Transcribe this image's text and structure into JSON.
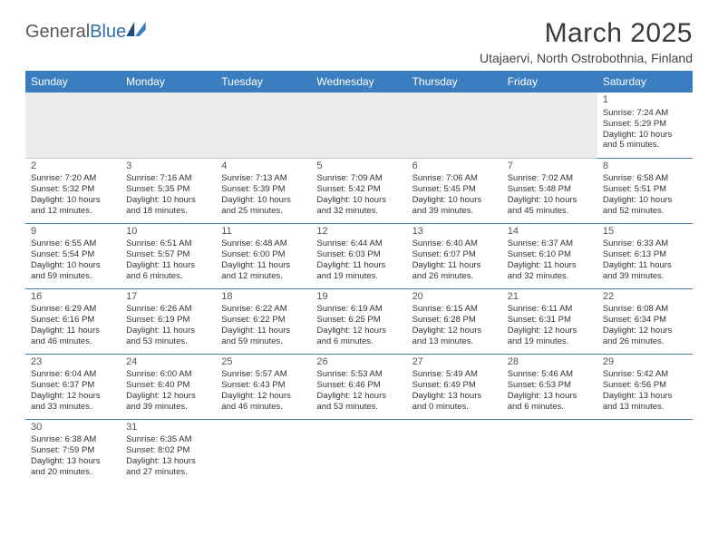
{
  "logo": {
    "text1": "General",
    "text2": "Blue"
  },
  "title": "March 2025",
  "subtitle": "Utajaervi, North Ostrobothnia, Finland",
  "colors": {
    "header_bg": "#3a7ebf",
    "header_text": "#ffffff",
    "empty_bg": "#ececec",
    "row_divider": "#3a7ebf",
    "text": "#333333",
    "logo_gray": "#5a5a5a",
    "logo_blue": "#2f6fa8"
  },
  "fonts": {
    "title_size": 30,
    "subtitle_size": 14,
    "header_size": 12,
    "cell_size": 9.5,
    "daynum_size": 11
  },
  "weekdays": [
    "Sunday",
    "Monday",
    "Tuesday",
    "Wednesday",
    "Thursday",
    "Friday",
    "Saturday"
  ],
  "weeks": [
    [
      null,
      null,
      null,
      null,
      null,
      null,
      {
        "n": "1",
        "sr": "Sunrise: 7:24 AM",
        "ss": "Sunset: 5:29 PM",
        "d1": "Daylight: 10 hours",
        "d2": "and 5 minutes."
      }
    ],
    [
      {
        "n": "2",
        "sr": "Sunrise: 7:20 AM",
        "ss": "Sunset: 5:32 PM",
        "d1": "Daylight: 10 hours",
        "d2": "and 12 minutes."
      },
      {
        "n": "3",
        "sr": "Sunrise: 7:16 AM",
        "ss": "Sunset: 5:35 PM",
        "d1": "Daylight: 10 hours",
        "d2": "and 18 minutes."
      },
      {
        "n": "4",
        "sr": "Sunrise: 7:13 AM",
        "ss": "Sunset: 5:39 PM",
        "d1": "Daylight: 10 hours",
        "d2": "and 25 minutes."
      },
      {
        "n": "5",
        "sr": "Sunrise: 7:09 AM",
        "ss": "Sunset: 5:42 PM",
        "d1": "Daylight: 10 hours",
        "d2": "and 32 minutes."
      },
      {
        "n": "6",
        "sr": "Sunrise: 7:06 AM",
        "ss": "Sunset: 5:45 PM",
        "d1": "Daylight: 10 hours",
        "d2": "and 39 minutes."
      },
      {
        "n": "7",
        "sr": "Sunrise: 7:02 AM",
        "ss": "Sunset: 5:48 PM",
        "d1": "Daylight: 10 hours",
        "d2": "and 45 minutes."
      },
      {
        "n": "8",
        "sr": "Sunrise: 6:58 AM",
        "ss": "Sunset: 5:51 PM",
        "d1": "Daylight: 10 hours",
        "d2": "and 52 minutes."
      }
    ],
    [
      {
        "n": "9",
        "sr": "Sunrise: 6:55 AM",
        "ss": "Sunset: 5:54 PM",
        "d1": "Daylight: 10 hours",
        "d2": "and 59 minutes."
      },
      {
        "n": "10",
        "sr": "Sunrise: 6:51 AM",
        "ss": "Sunset: 5:57 PM",
        "d1": "Daylight: 11 hours",
        "d2": "and 6 minutes."
      },
      {
        "n": "11",
        "sr": "Sunrise: 6:48 AM",
        "ss": "Sunset: 6:00 PM",
        "d1": "Daylight: 11 hours",
        "d2": "and 12 minutes."
      },
      {
        "n": "12",
        "sr": "Sunrise: 6:44 AM",
        "ss": "Sunset: 6:03 PM",
        "d1": "Daylight: 11 hours",
        "d2": "and 19 minutes."
      },
      {
        "n": "13",
        "sr": "Sunrise: 6:40 AM",
        "ss": "Sunset: 6:07 PM",
        "d1": "Daylight: 11 hours",
        "d2": "and 26 minutes."
      },
      {
        "n": "14",
        "sr": "Sunrise: 6:37 AM",
        "ss": "Sunset: 6:10 PM",
        "d1": "Daylight: 11 hours",
        "d2": "and 32 minutes."
      },
      {
        "n": "15",
        "sr": "Sunrise: 6:33 AM",
        "ss": "Sunset: 6:13 PM",
        "d1": "Daylight: 11 hours",
        "d2": "and 39 minutes."
      }
    ],
    [
      {
        "n": "16",
        "sr": "Sunrise: 6:29 AM",
        "ss": "Sunset: 6:16 PM",
        "d1": "Daylight: 11 hours",
        "d2": "and 46 minutes."
      },
      {
        "n": "17",
        "sr": "Sunrise: 6:26 AM",
        "ss": "Sunset: 6:19 PM",
        "d1": "Daylight: 11 hours",
        "d2": "and 53 minutes."
      },
      {
        "n": "18",
        "sr": "Sunrise: 6:22 AM",
        "ss": "Sunset: 6:22 PM",
        "d1": "Daylight: 11 hours",
        "d2": "and 59 minutes."
      },
      {
        "n": "19",
        "sr": "Sunrise: 6:19 AM",
        "ss": "Sunset: 6:25 PM",
        "d1": "Daylight: 12 hours",
        "d2": "and 6 minutes."
      },
      {
        "n": "20",
        "sr": "Sunrise: 6:15 AM",
        "ss": "Sunset: 6:28 PM",
        "d1": "Daylight: 12 hours",
        "d2": "and 13 minutes."
      },
      {
        "n": "21",
        "sr": "Sunrise: 6:11 AM",
        "ss": "Sunset: 6:31 PM",
        "d1": "Daylight: 12 hours",
        "d2": "and 19 minutes."
      },
      {
        "n": "22",
        "sr": "Sunrise: 6:08 AM",
        "ss": "Sunset: 6:34 PM",
        "d1": "Daylight: 12 hours",
        "d2": "and 26 minutes."
      }
    ],
    [
      {
        "n": "23",
        "sr": "Sunrise: 6:04 AM",
        "ss": "Sunset: 6:37 PM",
        "d1": "Daylight: 12 hours",
        "d2": "and 33 minutes."
      },
      {
        "n": "24",
        "sr": "Sunrise: 6:00 AM",
        "ss": "Sunset: 6:40 PM",
        "d1": "Daylight: 12 hours",
        "d2": "and 39 minutes."
      },
      {
        "n": "25",
        "sr": "Sunrise: 5:57 AM",
        "ss": "Sunset: 6:43 PM",
        "d1": "Daylight: 12 hours",
        "d2": "and 46 minutes."
      },
      {
        "n": "26",
        "sr": "Sunrise: 5:53 AM",
        "ss": "Sunset: 6:46 PM",
        "d1": "Daylight: 12 hours",
        "d2": "and 53 minutes."
      },
      {
        "n": "27",
        "sr": "Sunrise: 5:49 AM",
        "ss": "Sunset: 6:49 PM",
        "d1": "Daylight: 13 hours",
        "d2": "and 0 minutes."
      },
      {
        "n": "28",
        "sr": "Sunrise: 5:46 AM",
        "ss": "Sunset: 6:53 PM",
        "d1": "Daylight: 13 hours",
        "d2": "and 6 minutes."
      },
      {
        "n": "29",
        "sr": "Sunrise: 5:42 AM",
        "ss": "Sunset: 6:56 PM",
        "d1": "Daylight: 13 hours",
        "d2": "and 13 minutes."
      }
    ],
    [
      {
        "n": "30",
        "sr": "Sunrise: 6:38 AM",
        "ss": "Sunset: 7:59 PM",
        "d1": "Daylight: 13 hours",
        "d2": "and 20 minutes."
      },
      {
        "n": "31",
        "sr": "Sunrise: 6:35 AM",
        "ss": "Sunset: 8:02 PM",
        "d1": "Daylight: 13 hours",
        "d2": "and 27 minutes."
      },
      null,
      null,
      null,
      null,
      null
    ]
  ]
}
